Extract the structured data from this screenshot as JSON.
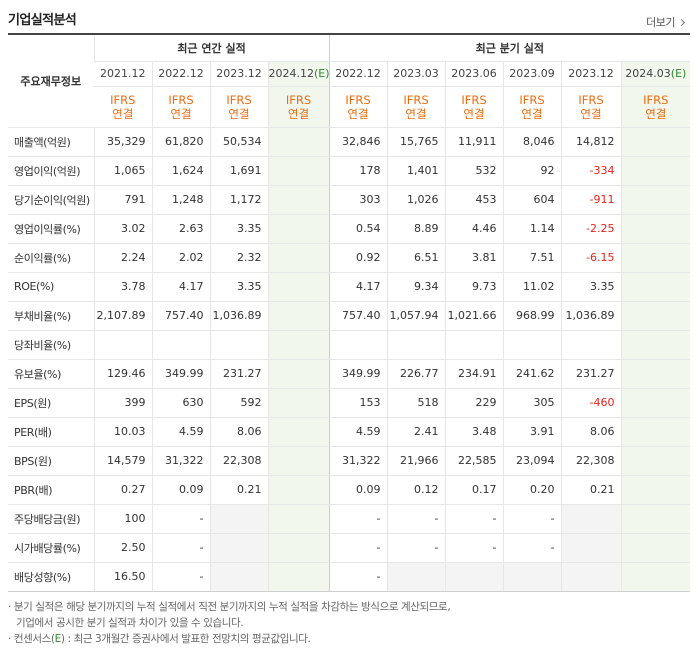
{
  "title": "기업실적분석",
  "more_label": "더보기",
  "header": {
    "row_label": "주요재무정보",
    "annual_label": "최근 연간 실적",
    "quarter_label": "최근 분기 실적",
    "annual_periods": [
      {
        "label": "2021.12",
        "tag": "",
        "estimate": false
      },
      {
        "label": "2022.12",
        "tag": "",
        "estimate": false
      },
      {
        "label": "2023.12",
        "tag": "",
        "estimate": false
      },
      {
        "label": "2024.12",
        "tag": "(E)",
        "estimate": true
      }
    ],
    "quarter_periods": [
      {
        "label": "2022.12",
        "tag": "",
        "estimate": false
      },
      {
        "label": "2023.03",
        "tag": "",
        "estimate": false
      },
      {
        "label": "2023.06",
        "tag": "",
        "estimate": false
      },
      {
        "label": "2023.09",
        "tag": "",
        "estimate": false
      },
      {
        "label": "2023.12",
        "tag": "",
        "estimate": false
      },
      {
        "label": "2024.03",
        "tag": "(E)",
        "estimate": true
      }
    ],
    "ifrs_line1": "IFRS",
    "ifrs_line2": "연결"
  },
  "rows": [
    {
      "label": "매출액(억원)",
      "group": 1,
      "annual": [
        "35,329",
        "61,820",
        "50,534",
        ""
      ],
      "quarter": [
        "32,846",
        "15,765",
        "11,911",
        "8,046",
        "14,812",
        ""
      ]
    },
    {
      "label": "영업이익(억원)",
      "group": 1,
      "annual": [
        "1,065",
        "1,624",
        "1,691",
        ""
      ],
      "quarter": [
        "178",
        "1,401",
        "532",
        "92",
        "-334",
        ""
      ]
    },
    {
      "label": "당기순이익(억원)",
      "group": 1,
      "annual": [
        "791",
        "1,248",
        "1,172",
        ""
      ],
      "quarter": [
        "303",
        "1,026",
        "453",
        "604",
        "-911",
        ""
      ]
    },
    {
      "label": "영업이익률(%)",
      "group": 2,
      "annual": [
        "3.02",
        "2.63",
        "3.35",
        ""
      ],
      "quarter": [
        "0.54",
        "8.89",
        "4.46",
        "1.14",
        "-2.25",
        ""
      ]
    },
    {
      "label": "순이익률(%)",
      "group": 2,
      "annual": [
        "2.24",
        "2.02",
        "2.32",
        ""
      ],
      "quarter": [
        "0.92",
        "6.51",
        "3.81",
        "7.51",
        "-6.15",
        ""
      ]
    },
    {
      "label": "ROE(%)",
      "group": 2,
      "annual": [
        "3.78",
        "4.17",
        "3.35",
        ""
      ],
      "quarter": [
        "4.17",
        "9.34",
        "9.73",
        "11.02",
        "3.35",
        ""
      ]
    },
    {
      "label": "부채비율(%)",
      "group": 3,
      "annual": [
        "2,107.89",
        "757.40",
        "1,036.89",
        ""
      ],
      "quarter": [
        "757.40",
        "1,057.94",
        "1,021.66",
        "968.99",
        "1,036.89",
        ""
      ]
    },
    {
      "label": "당좌비율(%)",
      "group": 3,
      "annual": [
        "",
        "",
        "",
        ""
      ],
      "quarter": [
        "",
        "",
        "",
        "",
        "",
        ""
      ]
    },
    {
      "label": "유보율(%)",
      "group": 3,
      "annual": [
        "129.46",
        "349.99",
        "231.27",
        ""
      ],
      "quarter": [
        "349.99",
        "226.77",
        "234.91",
        "241.62",
        "231.27",
        ""
      ]
    },
    {
      "label": "EPS(원)",
      "group": 4,
      "annual": [
        "399",
        "630",
        "592",
        ""
      ],
      "quarter": [
        "153",
        "518",
        "229",
        "305",
        "-460",
        ""
      ]
    },
    {
      "label": "PER(배)",
      "group": 4,
      "annual": [
        "10.03",
        "4.59",
        "8.06",
        ""
      ],
      "quarter": [
        "4.59",
        "2.41",
        "3.48",
        "3.91",
        "8.06",
        ""
      ]
    },
    {
      "label": "BPS(원)",
      "group": 4,
      "annual": [
        "14,579",
        "31,322",
        "22,308",
        ""
      ],
      "quarter": [
        "31,322",
        "21,966",
        "22,585",
        "23,094",
        "22,308",
        ""
      ]
    },
    {
      "label": "PBR(배)",
      "group": 4,
      "annual": [
        "0.27",
        "0.09",
        "0.21",
        ""
      ],
      "quarter": [
        "0.09",
        "0.12",
        "0.17",
        "0.20",
        "0.21",
        ""
      ]
    },
    {
      "label": "주당배당금(원)",
      "group": 5,
      "annual": [
        "100",
        "-",
        "",
        ""
      ],
      "quarter": [
        "-",
        "-",
        "-",
        "-",
        "",
        ""
      ]
    },
    {
      "label": "시가배당률(%)",
      "group": 5,
      "annual": [
        "2.50",
        "-",
        "",
        ""
      ],
      "quarter": [
        "-",
        "-",
        "-",
        "-",
        "",
        ""
      ]
    },
    {
      "label": "배당성향(%)",
      "group": 5,
      "annual": [
        "16.50",
        "-",
        "",
        ""
      ],
      "quarter": [
        "-",
        "",
        "",
        "",
        "",
        ""
      ]
    }
  ],
  "shaded_cells": {
    "annual": [
      [],
      [],
      [],
      [],
      [],
      [],
      [],
      [],
      [],
      [],
      [],
      [],
      [],
      [
        2
      ],
      [
        2
      ],
      [
        2
      ]
    ],
    "quarter": [
      [],
      [],
      [],
      [],
      [],
      [],
      [],
      [],
      [],
      [],
      [],
      [],
      [],
      [
        4
      ],
      [
        4
      ],
      [
        1,
        2,
        3,
        4
      ]
    ]
  },
  "notes": {
    "line1": "분기 실적은 해당 분기까지의 누적 실적에서 직전 분기까지의 누적 실적을 차감하는 방식으로 계산되므로,",
    "line2": "기업에서 공시한 분기 실적과 차이가 있을 수 있습니다.",
    "line3_prefix": "컨센서스(",
    "line3_tag": "E",
    "line3_suffix": ") : 최근 3개월간 증권사에서 발표한 전망치의 평균값입니다."
  },
  "colors": {
    "ifrs": "#ec6c0f",
    "negative": "#e8231a",
    "estimate_bg": "#f2f7ee",
    "estimate_tag": "#2e8b2e",
    "shaded_bg": "#f4f4f4"
  }
}
